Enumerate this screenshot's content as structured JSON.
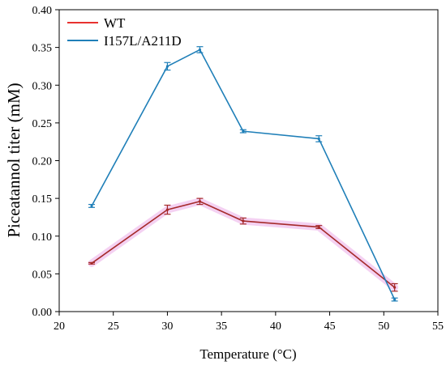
{
  "chart_data": {
    "type": "line",
    "xlabel": "Temperature (°C)",
    "ylabel": "Piceatannol titer (mM)",
    "xlim": [
      20,
      55
    ],
    "ylim": [
      0,
      0.4
    ],
    "xticks": [
      20,
      25,
      30,
      35,
      40,
      45,
      50,
      55
    ],
    "yticks": [
      0.0,
      0.05,
      0.1,
      0.15,
      0.2,
      0.25,
      0.3,
      0.35,
      0.4
    ],
    "grid": false,
    "legend_position": "top-left",
    "series": [
      {
        "name": "WT",
        "color": "#a52a2a",
        "legend_color": "#e8312f",
        "x": [
          23,
          30,
          33,
          37,
          44,
          51
        ],
        "y": [
          0.064,
          0.135,
          0.146,
          0.12,
          0.112,
          0.032
        ],
        "err": [
          0.001,
          0.006,
          0.004,
          0.004,
          0.002,
          0.005
        ]
      },
      {
        "name": "I157L/A211D",
        "color": "#1f7fb8",
        "legend_color": "#1f7fb8",
        "x": [
          23,
          30,
          33,
          37,
          44,
          51
        ],
        "y": [
          0.14,
          0.325,
          0.347,
          0.239,
          0.229,
          0.016
        ],
        "err": [
          0.002,
          0.005,
          0.004,
          0.002,
          0.004,
          0.002
        ]
      }
    ]
  }
}
